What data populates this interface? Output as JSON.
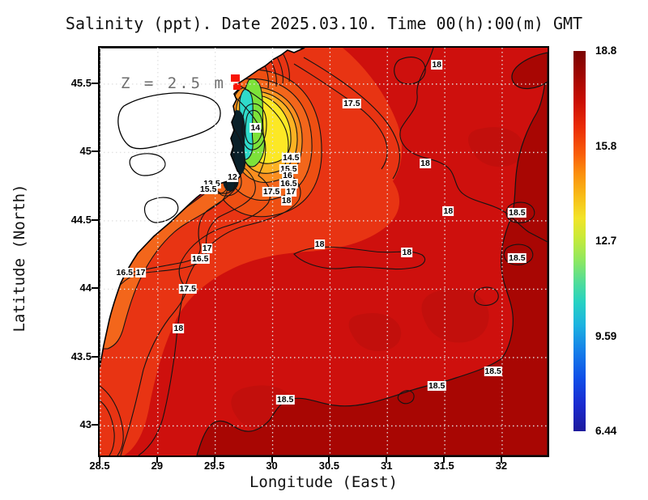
{
  "figure": {
    "title": "Salinity (ppt). Date 2025.03.10. Time 00(h):00(m) GMT",
    "annotation": "Z = 2.5 m"
  },
  "axes": {
    "x": {
      "label": "Longitude (East)",
      "ticks": [
        {
          "value": 28.5,
          "label": "28.5"
        },
        {
          "value": 29,
          "label": "29"
        },
        {
          "value": 29.5,
          "label": "29.5"
        },
        {
          "value": 30,
          "label": "30"
        },
        {
          "value": 30.5,
          "label": "30.5"
        },
        {
          "value": 31,
          "label": "31"
        },
        {
          "value": 31.5,
          "label": "31.5"
        },
        {
          "value": 32,
          "label": "32"
        }
      ]
    },
    "y": {
      "label": "Latitude (North)",
      "ticks": [
        {
          "value": 45.5,
          "label": "45.5"
        },
        {
          "value": 45,
          "label": "45"
        },
        {
          "value": 44.5,
          "label": "44.5"
        },
        {
          "value": 44,
          "label": "44"
        },
        {
          "value": 43.5,
          "label": "43.5"
        },
        {
          "value": 43,
          "label": "43"
        }
      ]
    }
  },
  "colorbar": {
    "ticks": [
      "18.8",
      "15.8",
      "12.7",
      "9.59",
      "6.44"
    ],
    "min": 6.44,
    "max": 18.8,
    "colormap": "jet"
  },
  "chart_data": {
    "type": "heatmap",
    "subtype": "filled-contour map with labeled isolines",
    "field": "Salinity (ppt)",
    "depth": "Z = 2.5 m",
    "datetime": "2025.03.10 00(h):00(m) GMT",
    "lon_range": [
      28.5,
      32.4
    ],
    "lat_range": [
      42.78,
      45.77
    ],
    "value_range": [
      6.44,
      18.8
    ],
    "colorbar_tick_values": [
      18.8,
      15.8,
      12.7,
      9.59,
      6.44
    ],
    "contour_interval": 0.5,
    "grid_spacing_deg": 0.5,
    "field_summary": {
      "open_sea_east": "18.0 - 18.8 (dark red, >18.5 southeast and east)",
      "west_coastal_band": "16.5 - 18.0 (orange-red band along Romanian coast)",
      "danube_plume_ring": "14 - 16.5 (orange/yellow around plume)",
      "danube_plume_core": "< 12 near river mouths (green/cyan/dark core)"
    },
    "contour_labels": [
      {
        "value": "18",
        "lon": 31.43,
        "lat": 45.64
      },
      {
        "value": "17.5",
        "lon": 30.69,
        "lat": 45.36
      },
      {
        "value": "14",
        "lon": 29.85,
        "lat": 45.18
      },
      {
        "value": "14.5",
        "lon": 30.16,
        "lat": 44.96
      },
      {
        "value": "15.5",
        "lon": 30.14,
        "lat": 44.88
      },
      {
        "value": "16",
        "lon": 30.13,
        "lat": 44.83
      },
      {
        "value": "16.5",
        "lon": 30.14,
        "lat": 44.77
      },
      {
        "value": "17.5",
        "lon": 29.99,
        "lat": 44.71
      },
      {
        "value": "17",
        "lon": 30.16,
        "lat": 44.71
      },
      {
        "value": "18",
        "lon": 30.12,
        "lat": 44.65
      },
      {
        "value": "12",
        "lon": 29.65,
        "lat": 44.82
      },
      {
        "value": "13.5",
        "lon": 29.47,
        "lat": 44.77
      },
      {
        "value": "15.5",
        "lon": 29.44,
        "lat": 44.73
      },
      {
        "value": "18",
        "lon": 31.33,
        "lat": 44.92
      },
      {
        "value": "18",
        "lon": 31.53,
        "lat": 44.57
      },
      {
        "value": "18.5",
        "lon": 32.13,
        "lat": 44.56
      },
      {
        "value": "18.5",
        "lon": 32.13,
        "lat": 44.23
      },
      {
        "value": "18",
        "lon": 30.41,
        "lat": 44.33
      },
      {
        "value": "18",
        "lon": 31.17,
        "lat": 44.27
      },
      {
        "value": "17",
        "lon": 29.43,
        "lat": 44.3
      },
      {
        "value": "16.5",
        "lon": 29.37,
        "lat": 44.22
      },
      {
        "value": "16.5",
        "lon": 28.71,
        "lat": 44.12
      },
      {
        "value": "17",
        "lon": 28.85,
        "lat": 44.12
      },
      {
        "value": "17.5",
        "lon": 29.26,
        "lat": 44.0
      },
      {
        "value": "18",
        "lon": 29.18,
        "lat": 43.71
      },
      {
        "value": "18.5",
        "lon": 31.92,
        "lat": 43.4
      },
      {
        "value": "18.5",
        "lon": 31.43,
        "lat": 43.29
      },
      {
        "value": "18.5",
        "lon": 30.11,
        "lat": 43.19
      }
    ]
  }
}
